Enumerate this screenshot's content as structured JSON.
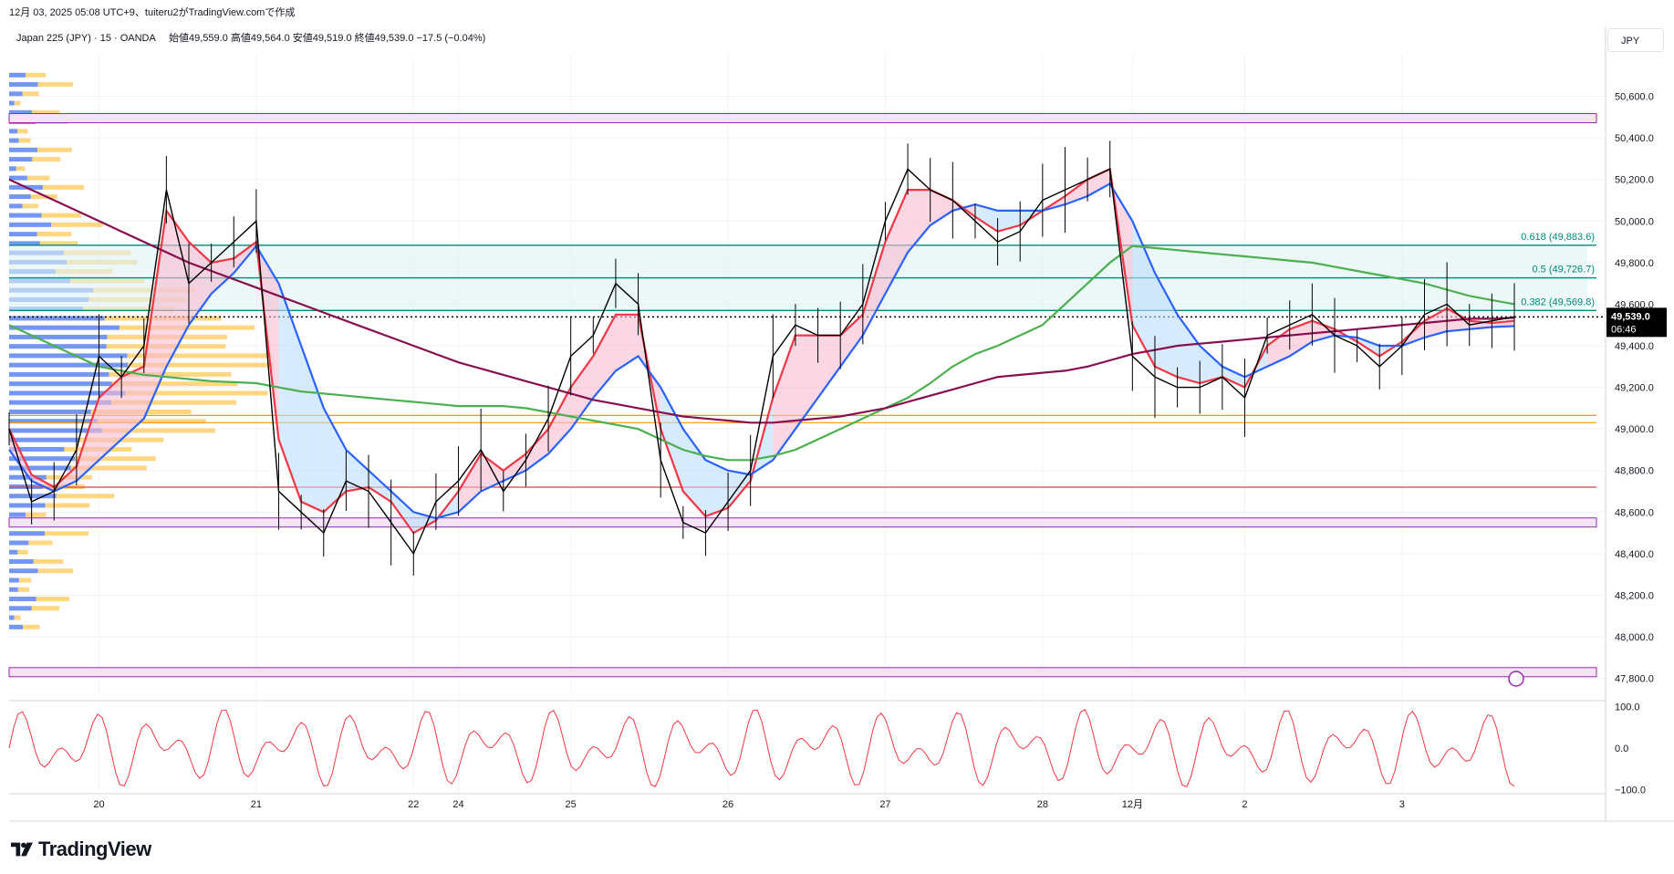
{
  "header": {
    "attribution": "12月 03, 2025 05:08 UTC+9、tuiteru2がTradingView.comで作成"
  },
  "currency_label": "JPY",
  "brand": "TradingView",
  "colors": {
    "red": "#f23645",
    "blue": "#2962ff",
    "green": "#4caf50",
    "maroon": "#880e4f",
    "orange": "#ff9800",
    "teal": "#00897b",
    "purple": "#9c27b0",
    "candle": "#000000",
    "vp_blue": "#5b84f0",
    "vp_orange": "#ffc857"
  },
  "chart_data": {
    "type": "line",
    "title": "Japan 225 (JPY) · 15 · OANDA",
    "ohlc_label": "始値49,559.0 高値49,564.0 安値49,519.0 終値49,539.0 −17.5 (−0.04%)",
    "price_axis": {
      "ylim": [
        47750,
        50800
      ],
      "ticks": [
        50600,
        50400,
        50200,
        50000,
        49800,
        49600,
        49400,
        49200,
        49000,
        48800,
        48600,
        48400,
        48200,
        48000,
        47800
      ],
      "tick_labels": [
        "50,600.0",
        "50,400.0",
        "50,200.0",
        "50,000.0",
        "49,800.0",
        "49,600.0",
        "49,400.0",
        "49,200.0",
        "49,000.0",
        "48,800.0",
        "48,600.0",
        "48,400.0",
        "48,200.0",
        "48,000.0",
        "47,800.0"
      ]
    },
    "last_price": {
      "value": 49539.0,
      "label": "49,539.0",
      "countdown": "06:46"
    },
    "x_axis": {
      "labels": [
        "20",
        "21",
        "22",
        "24",
        "25",
        "26",
        "27",
        "28",
        "12月",
        "2",
        "3"
      ],
      "label_index": [
        4,
        11,
        18,
        20,
        25,
        32,
        39,
        46,
        50,
        55,
        62
      ]
    },
    "fibonacci": [
      {
        "label": "0.618 (49,883.6)",
        "value": 49883.6
      },
      {
        "label": "0.5 (49,726.7)",
        "value": 49726.7
      },
      {
        "label": "0.382 (49,569.8)",
        "value": 49569.8
      }
    ],
    "horizontal_levels": [
      {
        "value": 50495,
        "style": "purple-band"
      },
      {
        "value": 48550,
        "style": "purple-band"
      },
      {
        "value": 47830,
        "style": "purple-band"
      },
      {
        "value": 49065,
        "style": "orange"
      },
      {
        "value": 49030,
        "style": "orange"
      },
      {
        "value": 48720,
        "style": "red"
      }
    ],
    "candles_close": [
      49000,
      48650,
      48700,
      48900,
      49350,
      49250,
      49400,
      50150,
      49700,
      49800,
      49900,
      50000,
      48700,
      48600,
      48500,
      48750,
      48700,
      48550,
      48400,
      48650,
      48750,
      48900,
      48700,
      48850,
      49050,
      49350,
      49450,
      49700,
      49600,
      48850,
      48550,
      48500,
      48650,
      48800,
      49350,
      49500,
      49450,
      49450,
      49600,
      50000,
      50250,
      50150,
      50100,
      50000,
      49900,
      49950,
      50100,
      50150,
      50200,
      50250,
      49350,
      49250,
      49200,
      49200,
      49250,
      49150,
      49450,
      49500,
      49550,
      49450,
      49400,
      49300,
      49400,
      49550,
      49600,
      49500,
      49520,
      49539
    ],
    "series": [
      {
        "name": "red",
        "color": "#f23645",
        "values": [
          49000,
          48780,
          48720,
          48820,
          49150,
          49250,
          49300,
          50050,
          49900,
          49800,
          49820,
          49900,
          48950,
          48650,
          48600,
          48700,
          48720,
          48650,
          48500,
          48560,
          48700,
          48880,
          48800,
          48880,
          49000,
          49200,
          49350,
          49550,
          49550,
          49000,
          48700,
          48580,
          48620,
          48750,
          49150,
          49450,
          49450,
          49450,
          49550,
          49900,
          50150,
          50150,
          50100,
          50020,
          49950,
          49980,
          50050,
          50120,
          50200,
          50250,
          49500,
          49300,
          49250,
          49220,
          49250,
          49200,
          49400,
          49480,
          49520,
          49480,
          49420,
          49350,
          49420,
          49520,
          49580,
          49520,
          49510,
          49520
        ]
      },
      {
        "name": "blue",
        "color": "#2962ff",
        "values": [
          48900,
          48750,
          48700,
          48750,
          48850,
          48950,
          49050,
          49300,
          49500,
          49650,
          49750,
          49880,
          49700,
          49400,
          49100,
          48900,
          48800,
          48700,
          48600,
          48570,
          48600,
          48700,
          48750,
          48800,
          48880,
          49000,
          49150,
          49280,
          49350,
          49200,
          49000,
          48850,
          48800,
          48780,
          48850,
          49000,
          49150,
          49300,
          49450,
          49650,
          49850,
          49980,
          50050,
          50080,
          50050,
          50050,
          50050,
          50080,
          50120,
          50180,
          50000,
          49750,
          49550,
          49400,
          49300,
          49250,
          49300,
          49350,
          49420,
          49450,
          49440,
          49400,
          49400,
          49440,
          49470,
          49480,
          49490,
          49495
        ]
      },
      {
        "name": "green",
        "color": "#4caf50",
        "values": [
          49500,
          49450,
          49400,
          49350,
          49300,
          49280,
          49260,
          49250,
          49240,
          49230,
          49225,
          49220,
          49200,
          49180,
          49170,
          49160,
          49150,
          49140,
          49130,
          49120,
          49110,
          49110,
          49110,
          49100,
          49080,
          49060,
          49040,
          49020,
          49000,
          48950,
          48900,
          48870,
          48850,
          48850,
          48870,
          48900,
          48950,
          49000,
          49050,
          49100,
          49150,
          49220,
          49300,
          49360,
          49400,
          49450,
          49500,
          49600,
          49700,
          49800,
          49880,
          49870,
          49860,
          49850,
          49840,
          49830,
          49820,
          49810,
          49800,
          49780,
          49760,
          49740,
          49720,
          49700,
          49670,
          49640,
          49620,
          49600
        ]
      },
      {
        "name": "maroon",
        "color": "#880e4f",
        "values": [
          50200,
          50150,
          50100,
          50050,
          50000,
          49950,
          49900,
          49850,
          49800,
          49760,
          49720,
          49680,
          49640,
          49600,
          49560,
          49520,
          49480,
          49440,
          49400,
          49360,
          49320,
          49290,
          49260,
          49230,
          49200,
          49170,
          49140,
          49120,
          49100,
          49080,
          49060,
          49050,
          49040,
          49030,
          49030,
          49040,
          49050,
          49060,
          49080,
          49100,
          49130,
          49160,
          49190,
          49220,
          49250,
          49260,
          49270,
          49280,
          49300,
          49330,
          49360,
          49380,
          49400,
          49410,
          49420,
          49430,
          49440,
          49450,
          49460,
          49470,
          49480,
          49490,
          49500,
          49510,
          49520,
          49530,
          49530,
          49535
        ]
      }
    ],
    "oscillator": {
      "ticks": [
        100,
        0,
        -100
      ],
      "tick_labels": [
        "100.0",
        "0.0",
        "−100.0"
      ],
      "ylim": [
        -110,
        110
      ]
    }
  }
}
